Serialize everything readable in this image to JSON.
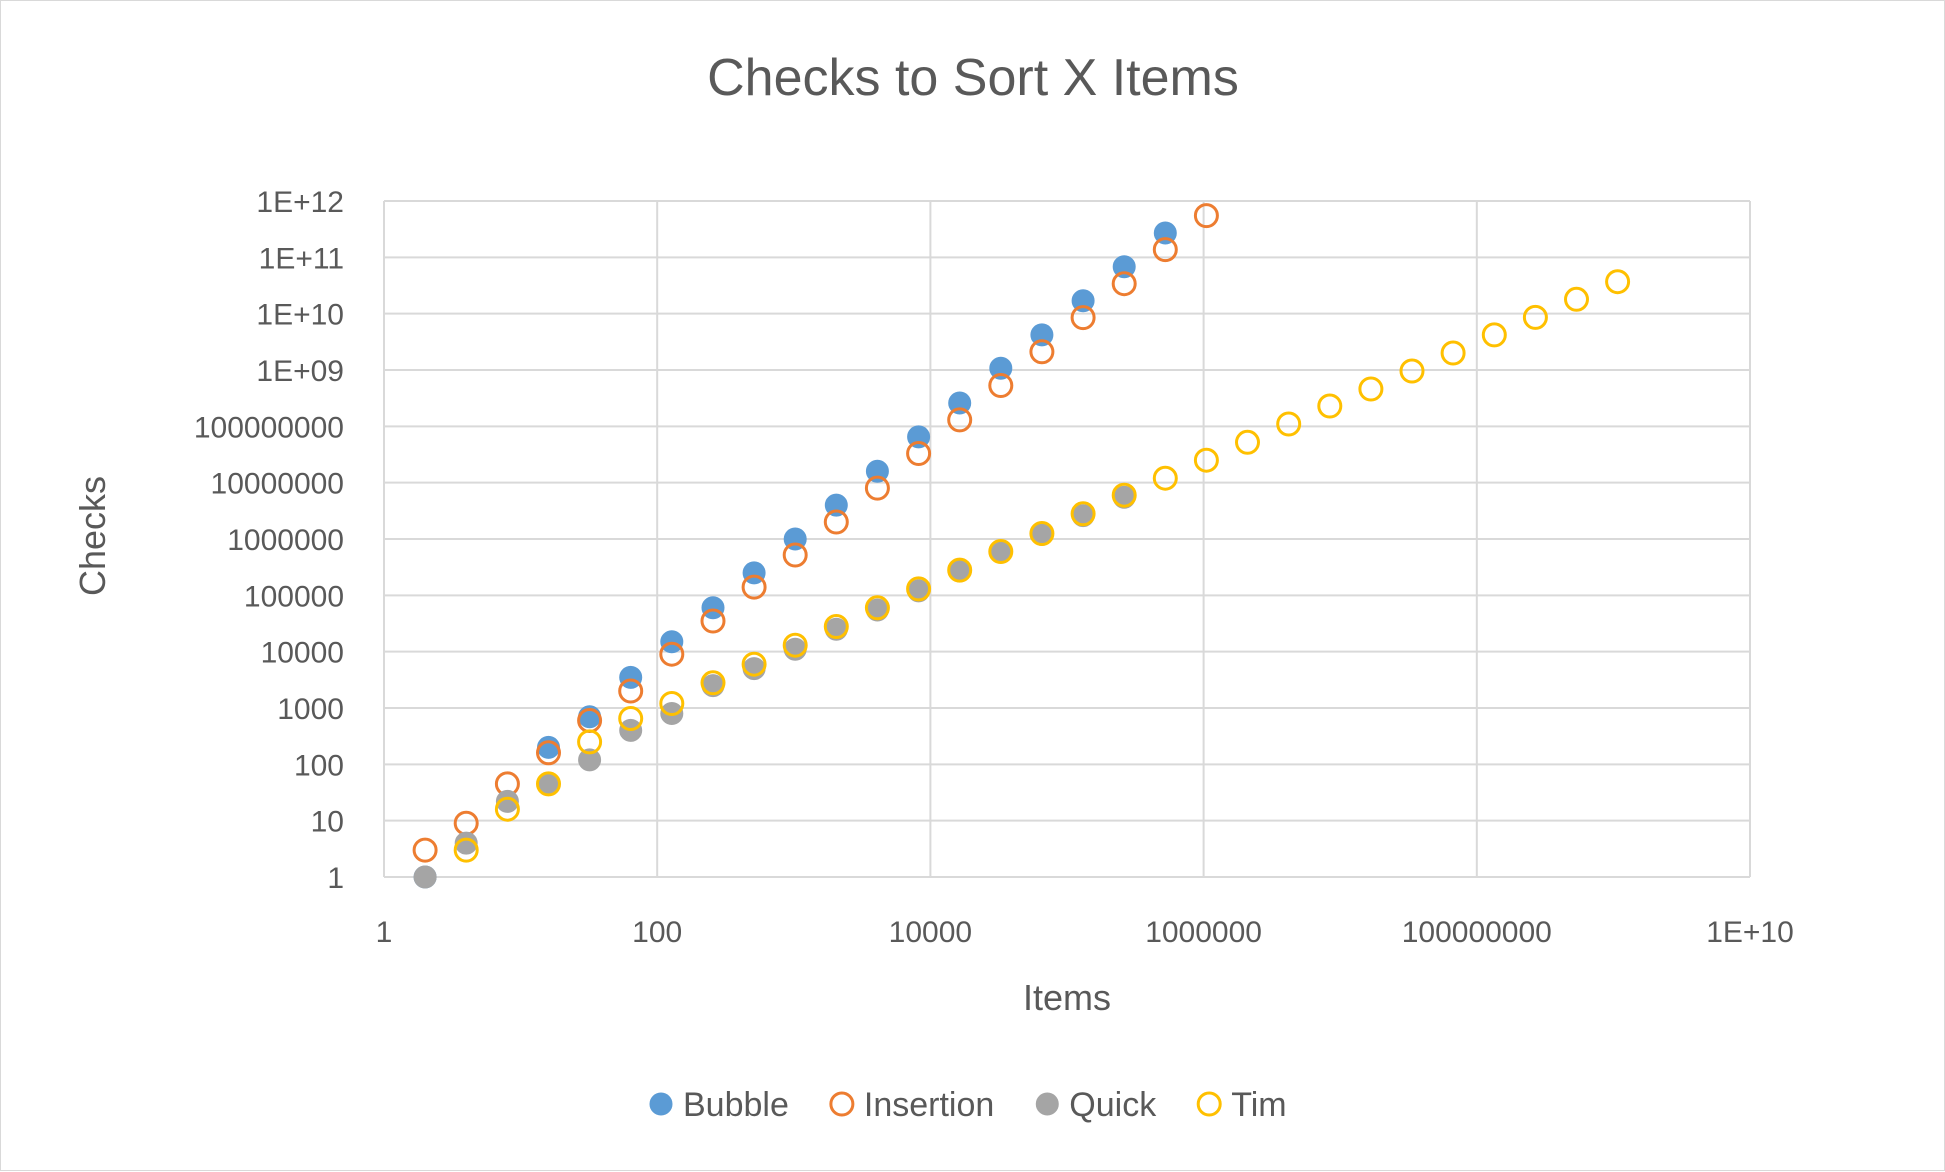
{
  "chart_data": {
    "type": "scatter",
    "title": "Checks to Sort X Items",
    "xlabel": "Items",
    "ylabel": "Checks",
    "x_scale": "log10",
    "y_scale": "log10",
    "xlim": [
      1,
      10000000000
    ],
    "ylim": [
      1,
      1000000000000
    ],
    "grid": true,
    "legend_position": "bottom",
    "x_tick_labels": [
      "1",
      "100",
      "10000",
      "1000000",
      "100000000",
      "1E+10"
    ],
    "y_tick_labels": [
      "1",
      "10",
      "100",
      "1000",
      "10000",
      "100000",
      "1000000",
      "10000000",
      "100000000",
      "1E+09",
      "1E+10",
      "1E+11",
      "1E+12"
    ],
    "series": [
      {
        "name": "Bubble",
        "marker": "filled",
        "color": "#5b9bd5",
        "x": [
          2,
          16,
          32,
          64,
          128,
          256,
          512,
          1024,
          2048,
          4096,
          8192,
          16384,
          32768,
          65536,
          131072,
          262144,
          524288
        ],
        "y": [
          1,
          200,
          700,
          3500,
          15000,
          60000,
          250000,
          1000000,
          4000000,
          16000000,
          65000000,
          260000000,
          1070000000,
          4200000000,
          17000000000,
          68000000000,
          270000000000
        ]
      },
      {
        "name": "Insertion",
        "marker": "hollow",
        "color": "#ed7d31",
        "x": [
          2,
          4,
          8,
          16,
          32,
          64,
          128,
          256,
          512,
          1024,
          2048,
          4096,
          8192,
          16384,
          32768,
          65536,
          131072,
          262144,
          524288,
          1048576
        ],
        "y": [
          3,
          9,
          45,
          160,
          600,
          2000,
          9000,
          35000,
          140000,
          520000,
          2000000,
          8000000,
          33000000,
          130000000,
          530000000,
          2100000000,
          8500000000,
          34000000000,
          137000000000,
          550000000000
        ]
      },
      {
        "name": "Quick",
        "marker": "filled",
        "color": "#a5a5a5",
        "x": [
          2,
          4,
          8,
          16,
          32,
          64,
          128,
          256,
          512,
          1024,
          2048,
          4096,
          8192,
          16384,
          32768,
          65536,
          131072,
          262144
        ],
        "y": [
          1,
          4,
          22,
          45,
          120,
          400,
          800,
          2500,
          5000,
          11000,
          25000,
          55000,
          120000,
          270000,
          580000,
          1200000,
          2600000,
          5500000
        ]
      },
      {
        "name": "Tim",
        "marker": "hollow",
        "color": "#ffc000",
        "x": [
          4,
          8,
          16,
          32,
          64,
          128,
          256,
          512,
          1024,
          2048,
          4096,
          8192,
          16384,
          32768,
          65536,
          131072,
          262144,
          524288,
          1048576,
          2097152,
          4194304,
          8388608,
          16777216,
          33554432,
          67108864,
          134217728,
          268435456,
          536870912,
          1073741824
        ],
        "y": [
          3,
          16,
          45,
          250,
          650,
          1200,
          2800,
          6000,
          13000,
          28000,
          60000,
          130000,
          280000,
          600000,
          1250000,
          2800000,
          6000000,
          12000000,
          25000000,
          52000000,
          110000000,
          230000000,
          460000000,
          960000000,
          2000000000,
          4200000000,
          8600000000,
          18000000000,
          37000000000
        ]
      }
    ]
  }
}
